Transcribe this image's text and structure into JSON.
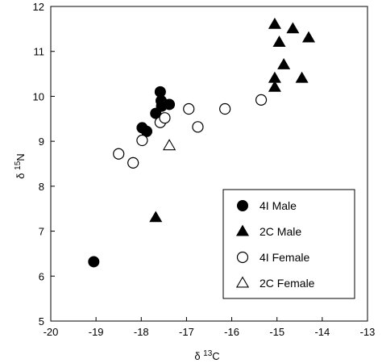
{
  "chart_data": {
    "type": "scatter",
    "xlabel": "δ 13C",
    "ylabel": "δ 15N",
    "xlim": [
      -20,
      -13
    ],
    "ylim": [
      5,
      12
    ],
    "xticks": [
      -20,
      -19,
      -18,
      -17,
      -16,
      -15,
      -14,
      -13
    ],
    "yticks": [
      5,
      6,
      7,
      8,
      9,
      10,
      11,
      12
    ],
    "grid": false,
    "legend_position": "bottom-right",
    "series": [
      {
        "name": "4I Male",
        "marker": "circle-filled",
        "points": [
          {
            "x": -19.05,
            "y": 6.32
          },
          {
            "x": -17.98,
            "y": 9.3
          },
          {
            "x": -17.88,
            "y": 9.22
          },
          {
            "x": -17.68,
            "y": 9.62
          },
          {
            "x": -17.58,
            "y": 10.1
          },
          {
            "x": -17.56,
            "y": 9.9
          },
          {
            "x": -17.55,
            "y": 9.78
          },
          {
            "x": -17.38,
            "y": 9.82
          }
        ]
      },
      {
        "name": "2C Male",
        "marker": "triangle-filled",
        "points": [
          {
            "x": -17.68,
            "y": 7.3
          },
          {
            "x": -15.05,
            "y": 11.6
          },
          {
            "x": -14.95,
            "y": 11.2
          },
          {
            "x": -14.65,
            "y": 11.5
          },
          {
            "x": -14.3,
            "y": 11.3
          },
          {
            "x": -14.85,
            "y": 10.7
          },
          {
            "x": -15.05,
            "y": 10.4
          },
          {
            "x": -14.45,
            "y": 10.4
          },
          {
            "x": -15.05,
            "y": 10.2
          }
        ]
      },
      {
        "name": "4I Female",
        "marker": "circle-open",
        "points": [
          {
            "x": -18.5,
            "y": 8.72
          },
          {
            "x": -18.18,
            "y": 8.52
          },
          {
            "x": -17.98,
            "y": 9.02
          },
          {
            "x": -17.58,
            "y": 9.42
          },
          {
            "x": -17.48,
            "y": 9.52
          },
          {
            "x": -16.95,
            "y": 9.72
          },
          {
            "x": -16.75,
            "y": 9.32
          },
          {
            "x": -16.15,
            "y": 9.72
          },
          {
            "x": -15.35,
            "y": 9.92
          }
        ]
      },
      {
        "name": "2C Female",
        "marker": "triangle-open",
        "points": [
          {
            "x": -17.38,
            "y": 8.9
          }
        ]
      }
    ]
  }
}
